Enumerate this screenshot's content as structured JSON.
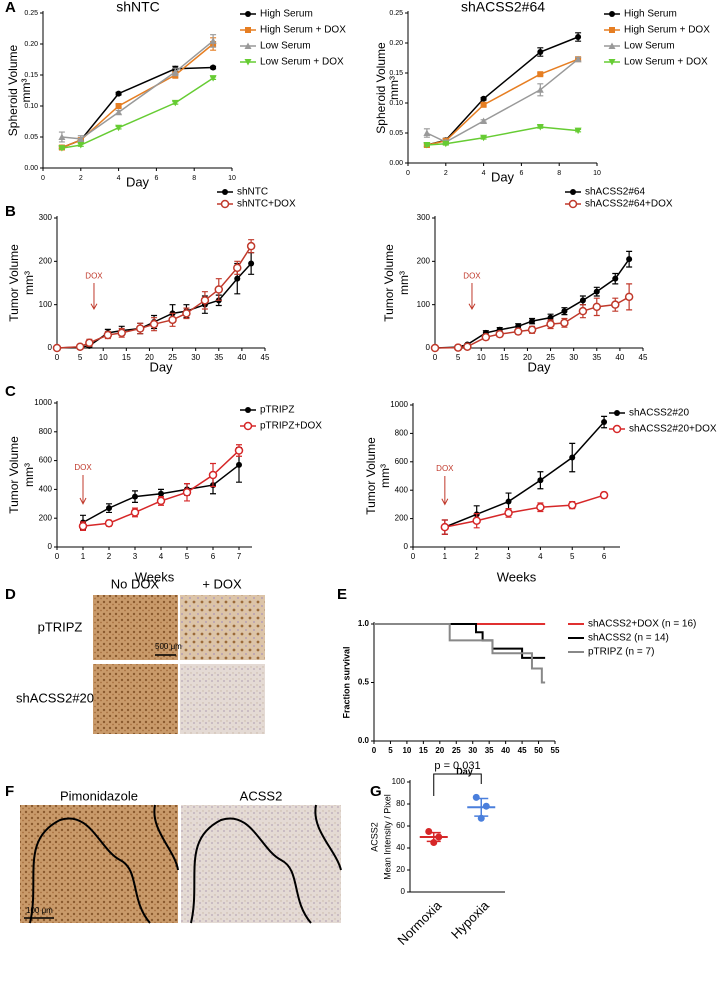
{
  "panel_letters": [
    "A",
    "B",
    "C",
    "D",
    "E",
    "F",
    "G"
  ],
  "panel_d": {
    "columns": [
      "No DOX",
      "+ DOX"
    ],
    "rows": [
      "pTRIPZ",
      "shACSS2#20"
    ],
    "scale_bar": "500 μm"
  },
  "panel_f": {
    "columns": [
      "Pimonidazole",
      "ACSS2"
    ],
    "scale_bar": "100 μm"
  },
  "chart_data": [
    {
      "type": "line",
      "title": "shNTC",
      "xlabel": "Day",
      "ylabel": [
        "Spheroid Volume",
        "mm³"
      ],
      "x": [
        1,
        2,
        4,
        7,
        9
      ],
      "xlim": [
        0,
        10
      ],
      "xticks": [
        0,
        2,
        4,
        6,
        8,
        10
      ],
      "ylim": [
        0,
        0.25
      ],
      "yticks": [
        {
          "value": 0,
          "label": "0.00"
        },
        0.05,
        {
          "value": 0.1,
          "label": "0.10"
        },
        0.15,
        {
          "value": 0.2,
          "label": "0.20"
        },
        0.25
      ],
      "series": [
        {
          "name": "High Serum",
          "color": "#000000",
          "marker": "circle",
          "values": [
            0.033,
            0.045,
            0.12,
            0.16,
            0.162
          ],
          "errors": [
            0.002,
            0.003,
            0.002,
            0.004,
            0.002
          ]
        },
        {
          "name": "High Serum + DOX",
          "color": "#e67e22",
          "marker": "square",
          "values": [
            0.033,
            0.045,
            0.1,
            0.15,
            0.2
          ],
          "errors": [
            0.002,
            0.002,
            0.003,
            0.005,
            0.01
          ]
        },
        {
          "name": "Low Serum",
          "color": "#999999",
          "marker": "triangle",
          "values": [
            0.05,
            0.047,
            0.09,
            0.155,
            0.205
          ],
          "errors": [
            0.008,
            0.005,
            0.003,
            0.006,
            0.01
          ]
        },
        {
          "name": "Low Serum + DOX",
          "color": "#66cc33",
          "marker": "triangle-down",
          "values": [
            0.032,
            0.037,
            0.065,
            0.105,
            0.145
          ],
          "errors": [
            0.002,
            0.002,
            0.002,
            0.002,
            0.002
          ]
        }
      ]
    },
    {
      "type": "line",
      "title": "shACSS2#64",
      "xlabel": "Day",
      "ylabel": [
        "Spheroid Volume",
        "mm³"
      ],
      "x": [
        1,
        2,
        4,
        7,
        9
      ],
      "xlim": [
        0,
        10
      ],
      "xticks": [
        0,
        2,
        4,
        6,
        8,
        10
      ],
      "ylim": [
        0,
        0.25
      ],
      "yticks": [
        {
          "value": 0,
          "label": "0.00"
        },
        0.05,
        {
          "value": 0.1,
          "label": "0.10"
        },
        0.15,
        {
          "value": 0.2,
          "label": "0.20"
        },
        0.25
      ],
      "series": [
        {
          "name": "High Serum",
          "color": "#000000",
          "marker": "circle",
          "values": [
            0.03,
            0.038,
            0.107,
            0.185,
            0.21
          ],
          "errors": [
            0.003,
            0.003,
            0.002,
            0.007,
            0.007
          ]
        },
        {
          "name": "High Serum + DOX",
          "color": "#e67e22",
          "marker": "square",
          "values": [
            0.03,
            0.037,
            0.097,
            0.148,
            0.173
          ],
          "errors": [
            0.002,
            0.002,
            0.002,
            0.002,
            0.002
          ]
        },
        {
          "name": "Low Serum",
          "color": "#999999",
          "marker": "triangle",
          "values": [
            0.05,
            0.035,
            0.07,
            0.122,
            0.173
          ],
          "errors": [
            0.007,
            0.003,
            0.002,
            0.01,
            0.003
          ]
        },
        {
          "name": "Low Serum + DOX",
          "color": "#66cc33",
          "marker": "triangle-down",
          "values": [
            0.03,
            0.032,
            0.042,
            0.06,
            0.054
          ],
          "errors": [
            0.002,
            0.002,
            0.002,
            0.002,
            0.002
          ]
        }
      ]
    },
    {
      "type": "line",
      "xlabel": "Day",
      "ylabel": [
        "Tumor Volume",
        "mm³"
      ],
      "x": [
        0,
        5,
        7,
        11,
        14,
        18,
        21,
        25,
        28,
        32,
        35,
        39,
        42
      ],
      "xlim": [
        0,
        45
      ],
      "xticks": [
        0,
        5,
        10,
        15,
        20,
        25,
        30,
        35,
        40,
        45
      ],
      "ylim": [
        0,
        300
      ],
      "yticks": [
        0,
        100,
        200,
        300
      ],
      "annotation": {
        "text": "DOX",
        "x": 8
      },
      "series": [
        {
          "name": "shNTC",
          "color": "#000000",
          "marker": "circle",
          "values": [
            0,
            2,
            5,
            35,
            40,
            45,
            60,
            80,
            85,
            100,
            110,
            160,
            195
          ],
          "errors": [
            0,
            2,
            3,
            8,
            10,
            12,
            15,
            20,
            15,
            20,
            12,
            35,
            25
          ]
        },
        {
          "name": "shNTC+DOX",
          "color": "#c0392b",
          "marker": "circle-open",
          "values": [
            0,
            3,
            12,
            30,
            35,
            45,
            55,
            65,
            80,
            110,
            135,
            185,
            235
          ],
          "errors": [
            0,
            2,
            8,
            8,
            10,
            12,
            15,
            15,
            12,
            20,
            25,
            15,
            15
          ]
        }
      ]
    },
    {
      "type": "line",
      "xlabel": "Day",
      "ylabel": [
        "Tumor Volume",
        "mm³"
      ],
      "x": [
        0,
        5,
        7,
        11,
        14,
        18,
        21,
        25,
        28,
        32,
        35,
        39,
        42
      ],
      "xlim": [
        0,
        45
      ],
      "xticks": [
        0,
        5,
        10,
        15,
        20,
        25,
        30,
        35,
        40,
        45
      ],
      "ylim": [
        0,
        300
      ],
      "yticks": [
        0,
        100,
        200,
        300
      ],
      "annotation": {
        "text": "DOX",
        "x": 8
      },
      "series": [
        {
          "name": "shACSS2#64",
          "color": "#000000",
          "marker": "circle",
          "values": [
            0,
            2,
            8,
            35,
            42,
            50,
            62,
            70,
            85,
            110,
            130,
            160,
            205
          ],
          "errors": [
            0,
            1,
            2,
            5,
            5,
            6,
            6,
            8,
            8,
            10,
            10,
            12,
            18
          ]
        },
        {
          "name": "shACSS2#64+DOX",
          "color": "#c0392b",
          "marker": "circle-open",
          "values": [
            0,
            1,
            3,
            25,
            32,
            38,
            42,
            55,
            58,
            85,
            95,
            100,
            118
          ],
          "errors": [
            0,
            1,
            2,
            6,
            6,
            6,
            8,
            10,
            10,
            15,
            20,
            15,
            30
          ]
        }
      ]
    },
    {
      "type": "line",
      "xlabel": "Weeks",
      "ylabel": [
        "Tumor Volume",
        "mm³"
      ],
      "x": [
        1,
        2,
        3,
        4,
        5,
        6,
        7
      ],
      "xlim": [
        0,
        7.5
      ],
      "xticks": [
        0,
        1,
        2,
        3,
        4,
        5,
        6,
        7
      ],
      "ylim": [
        0,
        1000
      ],
      "yticks": [
        0,
        200,
        400,
        600,
        800,
        1000
      ],
      "annotation": {
        "text": "DOX",
        "x": 1
      },
      "series": [
        {
          "name": "pTRIPZ",
          "color": "#000000",
          "marker": "circle",
          "values": [
            170,
            270,
            350,
            370,
            400,
            430,
            570
          ],
          "errors": [
            50,
            30,
            40,
            30,
            40,
            60,
            120
          ]
        },
        {
          "name": "pTRIPZ+DOX",
          "color": "#d62728",
          "marker": "circle-open",
          "values": [
            145,
            165,
            240,
            320,
            380,
            500,
            670
          ],
          "errors": [
            30,
            20,
            30,
            30,
            60,
            80,
            40
          ]
        }
      ]
    },
    {
      "type": "line",
      "xlabel": "Weeks",
      "ylabel": [
        "Tumor Volume",
        "mm³"
      ],
      "x": [
        1,
        2,
        3,
        4,
        5,
        6
      ],
      "xlim": [
        0,
        6.5
      ],
      "xticks": [
        0,
        1,
        2,
        3,
        4,
        5,
        6
      ],
      "ylim": [
        0,
        1000
      ],
      "yticks": [
        0,
        200,
        400,
        600,
        800,
        1000
      ],
      "annotation": {
        "text": "DOX",
        "x": 1
      },
      "series": [
        {
          "name": "shACSS2#20",
          "color": "#000000",
          "marker": "circle",
          "values": [
            140,
            230,
            320,
            470,
            630,
            880
          ],
          "errors": [
            50,
            60,
            60,
            60,
            100,
            40
          ]
        },
        {
          "name": "shACSS2#20+DOX",
          "color": "#d62728",
          "marker": "circle-open",
          "values": [
            140,
            185,
            240,
            280,
            295,
            365
          ],
          "errors": [
            50,
            50,
            30,
            30,
            25,
            20
          ]
        }
      ]
    },
    {
      "type": "step",
      "xlabel": "Day",
      "ylabel": [
        "Fraction survival"
      ],
      "xlim": [
        0,
        55
      ],
      "xticks": [
        0,
        5,
        10,
        15,
        20,
        25,
        30,
        35,
        40,
        45,
        50,
        55
      ],
      "ylim": [
        0,
        1
      ],
      "yticks": [
        {
          "value": 0,
          "label": "0.0"
        },
        0.5,
        {
          "value": 1,
          "label": "1.0"
        }
      ],
      "series": [
        {
          "name": "shACSS2+DOX (n = 16)",
          "color": "#e03030",
          "x": [
            0,
            52
          ],
          "values": [
            1,
            1
          ]
        },
        {
          "name": "shACSS2 (n = 14)",
          "color": "#000000",
          "x": [
            0,
            31,
            33,
            36,
            45,
            52
          ],
          "values": [
            1,
            0.93,
            0.86,
            0.79,
            0.71,
            0.71
          ]
        },
        {
          "name": "pTRIPZ (n = 7)",
          "color": "#888888",
          "x": [
            0,
            23,
            36,
            48,
            51,
            52
          ],
          "values": [
            1,
            0.86,
            0.75,
            0.62,
            0.5,
            0.5
          ]
        }
      ]
    },
    {
      "type": "dot",
      "ylabel": [
        "ACSS2",
        "Mean Intensity / Pixel"
      ],
      "categories": [
        "Normoxia",
        "Hypoxia"
      ],
      "colors": [
        "#d62728",
        "#4a7fdc"
      ],
      "points": [
        [
          55,
          50,
          45
        ],
        [
          86,
          78,
          67
        ]
      ],
      "means": [
        50,
        77
      ],
      "sem": [
        4,
        8
      ],
      "ylim": [
        0,
        100
      ],
      "yticks": [
        0,
        20,
        40,
        60,
        80,
        100
      ],
      "annotation": {
        "text": "p = 0.031"
      }
    }
  ]
}
